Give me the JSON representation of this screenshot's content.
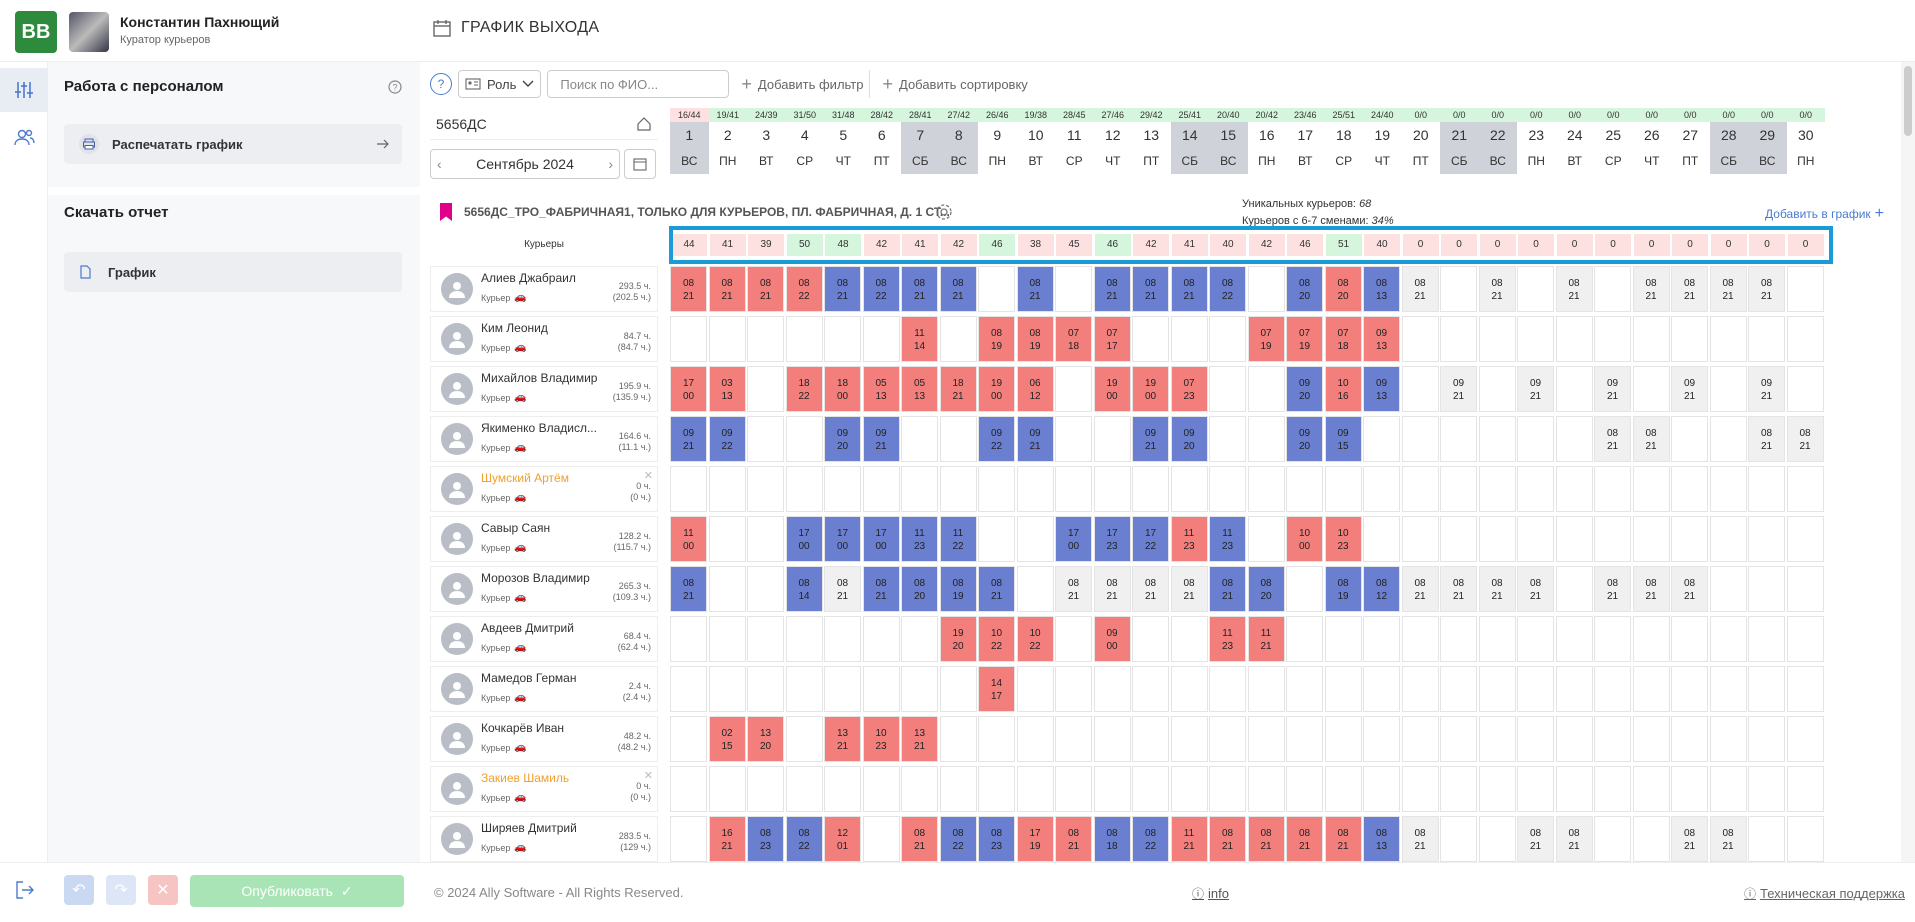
{
  "user": {
    "logo": "BB",
    "name": "Константин Пахнющий",
    "role": "Куратор курьеров"
  },
  "page": {
    "title": "ГРАФИК ВЫХОДА"
  },
  "left_panel": {
    "heading": "Работа с персоналом",
    "print_label": "Распечатать график",
    "report_heading": "Скачать отчет",
    "report_item": "График"
  },
  "toolbar": {
    "role_label": "Роль",
    "search_placeholder": "Поиск по ФИО...",
    "add_filter": "Добавить фильтр",
    "add_sort": "Добавить сортировку"
  },
  "store": {
    "code": "5656ДС",
    "month": "Сентябрь 2024",
    "full_name": "5656ДС_ТРО_ФАБРИЧНАЯ1, ТОЛЬКО ДЛЯ КУРЬЕРОВ, ПЛ. ФАБРИЧНАЯ, Д. 1 СТ...",
    "unique_label": "Уникальных курьеров:",
    "unique_value": "68",
    "ratio_label": "Курьеров с 6-7 сменами:",
    "ratio_value": "34%",
    "add_to_schedule": "Добавить в график"
  },
  "days": [
    {
      "cnt": "16/44",
      "num": "1",
      "dow": "ВС",
      "we": true,
      "c": "r"
    },
    {
      "cnt": "19/41",
      "num": "2",
      "dow": "ПН",
      "we": false,
      "c": "g"
    },
    {
      "cnt": "24/39",
      "num": "3",
      "dow": "ВТ",
      "we": false,
      "c": "g"
    },
    {
      "cnt": "31/50",
      "num": "4",
      "dow": "СР",
      "we": false,
      "c": "g"
    },
    {
      "cnt": "31/48",
      "num": "5",
      "dow": "ЧТ",
      "we": false,
      "c": "g"
    },
    {
      "cnt": "28/42",
      "num": "6",
      "dow": "ПТ",
      "we": false,
      "c": "g"
    },
    {
      "cnt": "28/41",
      "num": "7",
      "dow": "СБ",
      "we": true,
      "c": "g"
    },
    {
      "cnt": "27/42",
      "num": "8",
      "dow": "ВС",
      "we": true,
      "c": "g"
    },
    {
      "cnt": "26/46",
      "num": "9",
      "dow": "ПН",
      "we": false,
      "c": "g"
    },
    {
      "cnt": "19/38",
      "num": "10",
      "dow": "ВТ",
      "we": false,
      "c": "g"
    },
    {
      "cnt": "28/45",
      "num": "11",
      "dow": "СР",
      "we": false,
      "c": "g"
    },
    {
      "cnt": "27/46",
      "num": "12",
      "dow": "ЧТ",
      "we": false,
      "c": "g"
    },
    {
      "cnt": "29/42",
      "num": "13",
      "dow": "ПТ",
      "we": false,
      "c": "g"
    },
    {
      "cnt": "25/41",
      "num": "14",
      "dow": "СБ",
      "we": true,
      "c": "g"
    },
    {
      "cnt": "20/40",
      "num": "15",
      "dow": "ВС",
      "we": true,
      "c": "g"
    },
    {
      "cnt": "20/42",
      "num": "16",
      "dow": "ПН",
      "we": false,
      "c": "g"
    },
    {
      "cnt": "23/46",
      "num": "17",
      "dow": "ВТ",
      "we": false,
      "c": "g"
    },
    {
      "cnt": "25/51",
      "num": "18",
      "dow": "СР",
      "we": false,
      "c": "g"
    },
    {
      "cnt": "24/40",
      "num": "19",
      "dow": "ЧТ",
      "we": false,
      "c": "g"
    },
    {
      "cnt": "0/0",
      "num": "20",
      "dow": "ПТ",
      "we": false,
      "c": "g"
    },
    {
      "cnt": "0/0",
      "num": "21",
      "dow": "СБ",
      "we": true,
      "c": "g"
    },
    {
      "cnt": "0/0",
      "num": "22",
      "dow": "ВС",
      "we": true,
      "c": "g"
    },
    {
      "cnt": "0/0",
      "num": "23",
      "dow": "ПН",
      "we": false,
      "c": "g"
    },
    {
      "cnt": "0/0",
      "num": "24",
      "dow": "ВТ",
      "we": false,
      "c": "g"
    },
    {
      "cnt": "0/0",
      "num": "25",
      "dow": "СР",
      "we": false,
      "c": "g"
    },
    {
      "cnt": "0/0",
      "num": "26",
      "dow": "ЧТ",
      "we": false,
      "c": "g"
    },
    {
      "cnt": "0/0",
      "num": "27",
      "dow": "ПТ",
      "we": false,
      "c": "g"
    },
    {
      "cnt": "0/0",
      "num": "28",
      "dow": "СБ",
      "we": true,
      "c": "g"
    },
    {
      "cnt": "0/0",
      "num": "29",
      "dow": "ВС",
      "we": true,
      "c": "g"
    },
    {
      "cnt": "0/0",
      "num": "30",
      "dow": "ПН",
      "we": false,
      "c": "g"
    }
  ],
  "rows_header": "Курьеры",
  "totals": [
    "44",
    "41",
    "39",
    "50",
    "48",
    "42",
    "41",
    "42",
    "46",
    "38",
    "45",
    "46",
    "42",
    "41",
    "40",
    "42",
    "46",
    "51",
    "40",
    "0",
    "0",
    "0",
    "0",
    "0",
    "0",
    "0",
    "0",
    "0",
    "0",
    "0"
  ],
  "couriers": [
    {
      "name": "Алиев Джабраил",
      "role": "Курьер",
      "h1": "293.5 ч.",
      "h2": "(202.5 ч.)",
      "orange": false,
      "shifts": [
        "r:08|21",
        "r:08|21",
        "r:08|21",
        "r:08|22",
        "b:08|21",
        "b:08|22",
        "b:08|21",
        "b:08|21",
        "",
        "b:08|21",
        "",
        "b:08|21",
        "b:08|21",
        "b:08|21",
        "b:08|22",
        "",
        "b:08|20",
        "r:08|20",
        "b:08|13",
        "g:08|21",
        "",
        "g:08|21",
        "",
        "g:08|21",
        "",
        "g:08|21",
        "g:08|21",
        "g:08|21",
        "g:08|21",
        ""
      ]
    },
    {
      "name": "Ким Леонид",
      "role": "Курьер",
      "h1": "84.7 ч.",
      "h2": "(84.7 ч.)",
      "orange": false,
      "shifts": [
        "",
        "",
        "",
        "",
        "",
        "",
        "r:11|14",
        "",
        "r:08|19",
        "r:08|19",
        "r:07|18",
        "r:07|17",
        "",
        "",
        "",
        "r:07|19",
        "r:07|19",
        "r:07|18",
        "r:09|13",
        "",
        "",
        "",
        "",
        "",
        "",
        "",
        "",
        "",
        "",
        ""
      ]
    },
    {
      "name": "Михайлов Владимир",
      "role": "Курьер",
      "h1": "195.9 ч.",
      "h2": "(135.9 ч.)",
      "orange": false,
      "shifts": [
        "r:17|00",
        "r:03|13",
        "",
        "r:18|22",
        "r:18|00",
        "r:05|13",
        "r:05|13",
        "r:18|21",
        "r:19|00",
        "r:06|12",
        "",
        "r:19|00",
        "r:19|00",
        "r:07|23",
        "",
        "",
        "b:09|20",
        "r:10|16",
        "b:09|13",
        "",
        "g:09|21",
        "",
        "g:09|21",
        "",
        "g:09|21",
        "",
        "g:09|21",
        "",
        "g:09|21",
        ""
      ]
    },
    {
      "name": "Якименко Владисл...",
      "role": "Курьер",
      "h1": "164.6 ч.",
      "h2": "(11.1 ч.)",
      "orange": false,
      "shifts": [
        "b:09|21",
        "b:09|22",
        "",
        "",
        "b:09|20",
        "b:09|21",
        "",
        "",
        "b:09|22",
        "b:09|21",
        "",
        "",
        "b:09|21",
        "b:09|20",
        "",
        "",
        "b:09|20",
        "b:09|15",
        "",
        "",
        "",
        "",
        "",
        "",
        "g:08|21",
        "g:08|21",
        "",
        "",
        "g:08|21",
        "g:08|21"
      ]
    },
    {
      "name": "Шумский Артём",
      "role": "Курьер",
      "h1": "0 ч.",
      "h2": "(0 ч.)",
      "orange": true,
      "shifts": [
        "",
        "",
        "",
        "",
        "",
        "",
        "",
        "",
        "",
        "",
        "",
        "",
        "",
        "",
        "",
        "",
        "",
        "",
        "",
        "",
        "",
        "",
        "",
        "",
        "",
        "",
        "",
        "",
        "",
        ""
      ]
    },
    {
      "name": "Савыр Саян",
      "role": "Курьер",
      "h1": "128.2 ч.",
      "h2": "(115.7 ч.)",
      "orange": false,
      "shifts": [
        "r:11|00",
        "",
        "",
        "b:17|00",
        "b:17|00",
        "b:17|00",
        "b:11|23",
        "b:11|22",
        "",
        "",
        "b:17|00",
        "b:17|23",
        "b:17|22",
        "r:11|23",
        "b:11|23",
        "",
        "r:10|00",
        "r:10|23",
        "",
        "",
        "",
        "",
        "",
        "",
        "",
        "",
        "",
        "",
        "",
        ""
      ]
    },
    {
      "name": "Морозов Владимир",
      "role": "Курьер",
      "h1": "265.3 ч.",
      "h2": "(109.3 ч.)",
      "orange": false,
      "shifts": [
        "b:08|21",
        "",
        "",
        "b:08|14",
        "g:08|21",
        "b:08|21",
        "b:08|20",
        "b:08|19",
        "b:08|21",
        "",
        "g:08|21",
        "g:08|21",
        "g:08|21",
        "g:08|21",
        "b:08|21",
        "b:08|20",
        "",
        "b:08|19",
        "b:08|12",
        "g:08|21",
        "g:08|21",
        "g:08|21",
        "g:08|21",
        "",
        "g:08|21",
        "g:08|21",
        "g:08|21",
        "",
        "",
        ""
      ]
    },
    {
      "name": "Авдеев Дмитрий",
      "role": "Курьер",
      "h1": "68.4 ч.",
      "h2": "(62.4 ч.)",
      "orange": false,
      "shifts": [
        "",
        "",
        "",
        "",
        "",
        "",
        "",
        "r:19|20",
        "r:10|22",
        "r:10|22",
        "",
        "r:09|00",
        "",
        "",
        "r:11|23",
        "r:11|21",
        "",
        "",
        "",
        "",
        "",
        "",
        "",
        "",
        "",
        "",
        "",
        "",
        "",
        ""
      ]
    },
    {
      "name": "Мамедов Герман",
      "role": "Курьер",
      "h1": "2.4 ч.",
      "h2": "(2.4 ч.)",
      "orange": false,
      "shifts": [
        "",
        "",
        "",
        "",
        "",
        "",
        "",
        "",
        "r:14|17",
        "",
        "",
        "",
        "",
        "",
        "",
        "",
        "",
        "",
        "",
        "",
        "",
        "",
        "",
        "",
        "",
        "",
        "",
        "",
        "",
        ""
      ]
    },
    {
      "name": "Кочкарёв Иван",
      "role": "Курьер",
      "h1": "48.2 ч.",
      "h2": "(48.2 ч.)",
      "orange": false,
      "shifts": [
        "",
        "r:02|15",
        "r:13|20",
        "",
        "r:13|21",
        "r:10|23",
        "r:13|21",
        "",
        "",
        "",
        "",
        "",
        "",
        "",
        "",
        "",
        "",
        "",
        "",
        "",
        "",
        "",
        "",
        "",
        "",
        "",
        "",
        "",
        "",
        ""
      ]
    },
    {
      "name": "Закиев Шамиль",
      "role": "Курьер",
      "h1": "0 ч.",
      "h2": "(0 ч.)",
      "orange": true,
      "shifts": [
        "",
        "",
        "",
        "",
        "",
        "",
        "",
        "",
        "",
        "",
        "",
        "",
        "",
        "",
        "",
        "",
        "",
        "",
        "",
        "",
        "",
        "",
        "",
        "",
        "",
        "",
        "",
        "",
        "",
        ""
      ]
    },
    {
      "name": "Ширяев Дмитрий",
      "role": "Курьер",
      "h1": "283.5 ч.",
      "h2": "(129 ч.)",
      "orange": false,
      "shifts": [
        "",
        "r:16|21",
        "b:08|23",
        "b:08|22",
        "r:12|01",
        "",
        "r:08|21",
        "b:08|22",
        "b:08|23",
        "r:17|19",
        "r:08|21",
        "b:08|18",
        "b:08|22",
        "r:11|21",
        "r:08|21",
        "r:08|21",
        "r:08|21",
        "r:08|21",
        "b:08|13",
        "g:08|21",
        "",
        "",
        "g:08|21",
        "g:08|21",
        "",
        "",
        "g:08|21",
        "g:08|21",
        "",
        ""
      ]
    }
  ],
  "footer": {
    "publish": "Опубликовать",
    "copyright": "© 2024 Ally Software - All Rights Reserved.",
    "info": "info",
    "support": "Техническая поддержка"
  },
  "colors": {
    "red": "#f37f7d",
    "blue": "#6a7fcf",
    "green_badge": "#d5f5dc",
    "pink_badge": "#fde0e0",
    "highlight": "#1b9ad8",
    "publish": "#a9e4b6"
  }
}
